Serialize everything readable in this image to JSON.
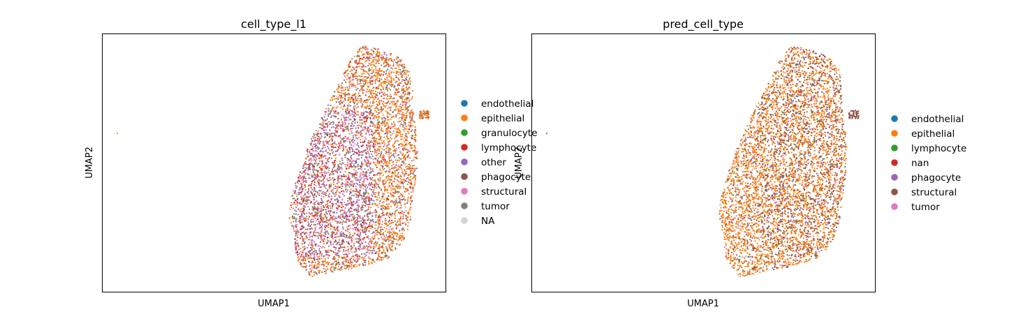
{
  "chart_data": [
    {
      "type": "scatter",
      "title": "cell_type_l1",
      "xlabel": "UMAP1",
      "ylabel": "UMAP2",
      "grid": false,
      "legend_placement": "right",
      "series": [
        {
          "name": "endothelial",
          "color": "#1f77b4",
          "share": 0.02
        },
        {
          "name": "epithelial",
          "color": "#ff7f0e",
          "share": 0.38
        },
        {
          "name": "granulocyte",
          "color": "#2ca02c",
          "share": 0.01
        },
        {
          "name": "lymphocyte",
          "color": "#d62728",
          "share": 0.15
        },
        {
          "name": "other",
          "color": "#9467bd",
          "share": 0.05
        },
        {
          "name": "phagocyte",
          "color": "#8c564b",
          "share": 0.07
        },
        {
          "name": "structural",
          "color": "#e377c2",
          "share": 0.08
        },
        {
          "name": "tumor",
          "color": "#7f7f7f",
          "share": 0.22
        },
        {
          "name": "NA",
          "color": "#d3d3d3",
          "share": 0.02
        }
      ]
    },
    {
      "type": "scatter",
      "title": "pred_cell_type",
      "xlabel": "UMAP1",
      "ylabel": "UMAP2",
      "grid": false,
      "legend_placement": "right",
      "series": [
        {
          "name": "endothelial",
          "color": "#1f77b4",
          "share": 0.02
        },
        {
          "name": "epithelial",
          "color": "#ff7f0e",
          "share": 0.72
        },
        {
          "name": "lymphocyte",
          "color": "#2ca02c",
          "share": 0.01
        },
        {
          "name": "nan",
          "color": "#d62728",
          "share": 0.01
        },
        {
          "name": "phagocyte",
          "color": "#9467bd",
          "share": 0.03
        },
        {
          "name": "structural",
          "color": "#8c564b",
          "share": 0.16
        },
        {
          "name": "tumor",
          "color": "#e377c2",
          "share": 0.05
        }
      ]
    }
  ]
}
